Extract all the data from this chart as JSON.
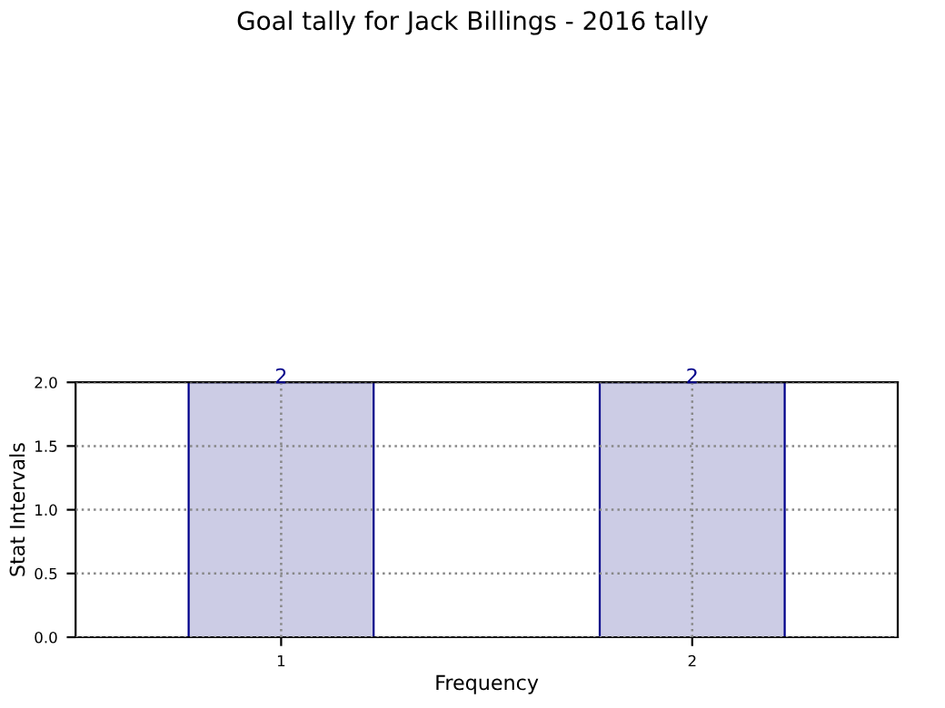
{
  "chart_data": {
    "type": "bar",
    "title": "Goal tally for Jack Billings - 2016 tally",
    "xlabel": "Frequency",
    "ylabel": "Stat Intervals",
    "categories": [
      "1",
      "2"
    ],
    "series": [
      {
        "color": "#ccccE5",
        "values": [
          2,
          2
        ]
      }
    ],
    "ylim": [
      0,
      2
    ],
    "yticks": [
      {
        "value": 0,
        "label": "0.0"
      },
      {
        "value": 0.5,
        "label": "0.5"
      },
      {
        "value": 1,
        "label": "1.0"
      },
      {
        "value": 1.5,
        "label": "1.5"
      },
      {
        "value": 2,
        "label": "2.0"
      }
    ],
    "grid": true,
    "data_labels": true,
    "legend": false
  }
}
